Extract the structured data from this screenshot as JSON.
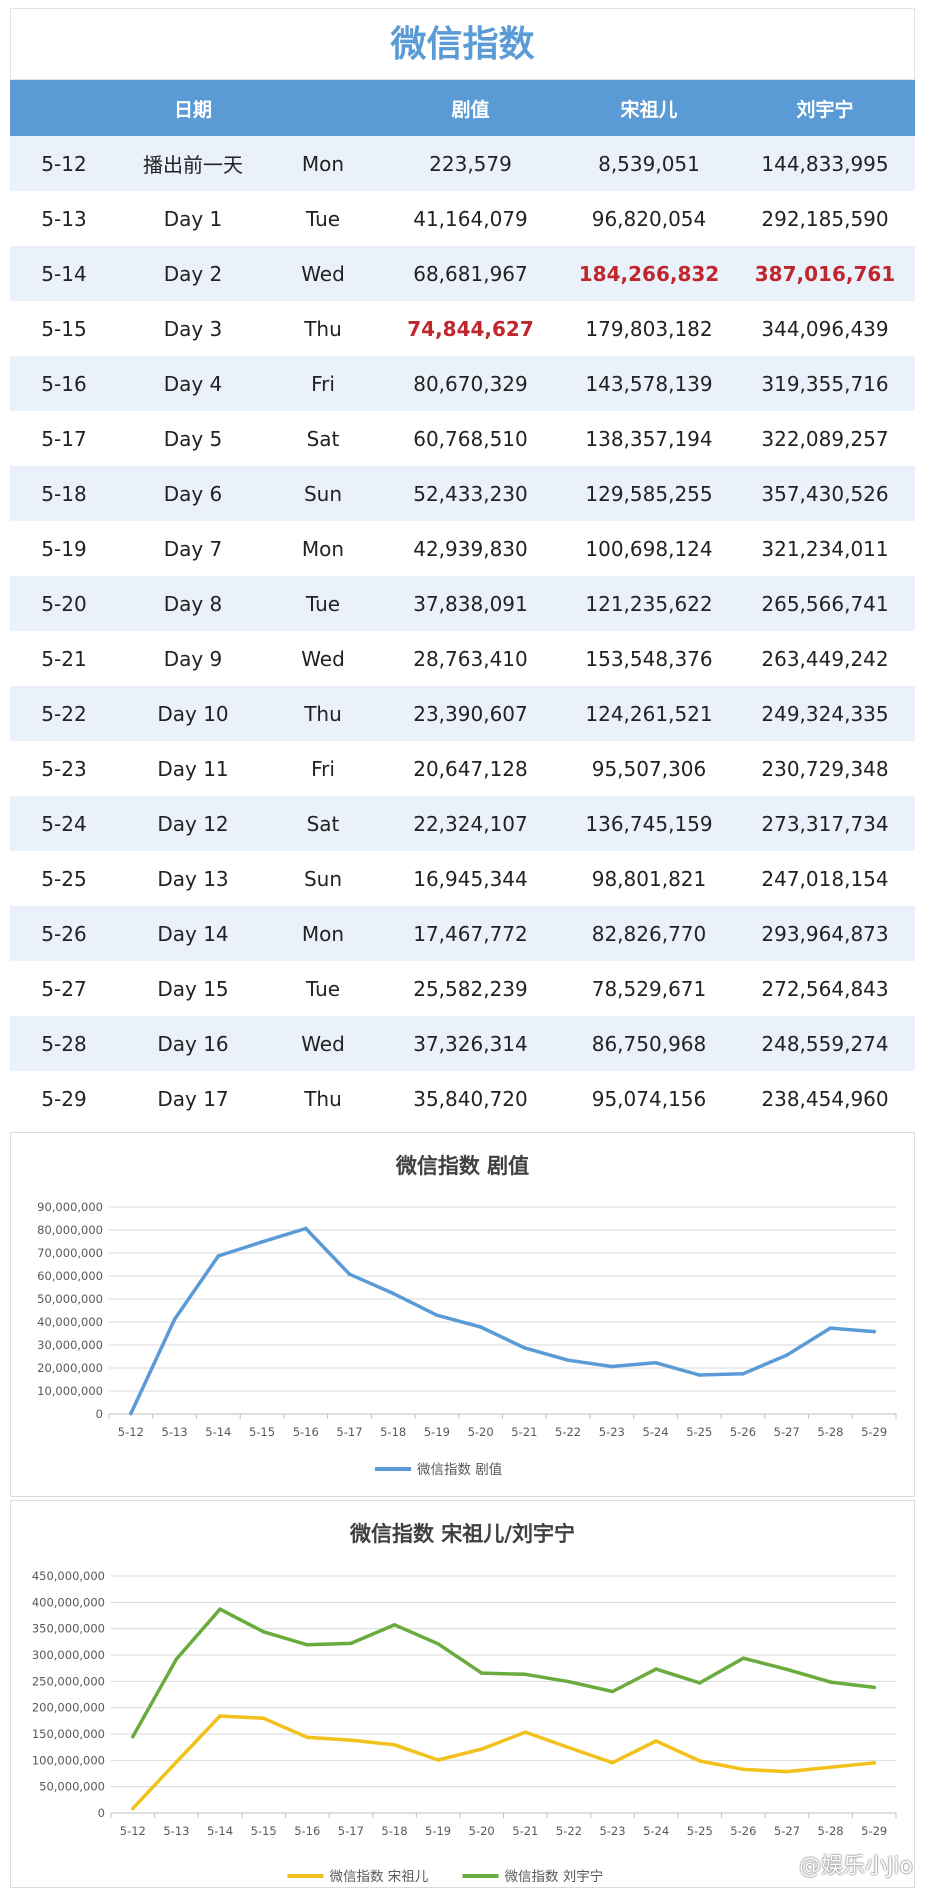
{
  "title": "微信指数",
  "table": {
    "headers": [
      "",
      "日期",
      "",
      "剧值",
      "宋祖儿",
      "刘宇宁"
    ],
    "rows": [
      [
        "5-12",
        "播出前一天",
        "Mon",
        "223,579",
        "8,539,051",
        "144,833,995"
      ],
      [
        "5-13",
        "Day 1",
        "Tue",
        "41,164,079",
        "96,820,054",
        "292,185,590"
      ],
      [
        "5-14",
        "Day 2",
        "Wed",
        "68,681,967",
        "184,266,832",
        "387,016,761"
      ],
      [
        "5-15",
        "Day 3",
        "Thu",
        "74,844,627",
        "179,803,182",
        "344,096,439"
      ],
      [
        "5-16",
        "Day 4",
        "Fri",
        "80,670,329",
        "143,578,139",
        "319,355,716"
      ],
      [
        "5-17",
        "Day 5",
        "Sat",
        "60,768,510",
        "138,357,194",
        "322,089,257"
      ],
      [
        "5-18",
        "Day 6",
        "Sun",
        "52,433,230",
        "129,585,255",
        "357,430,526"
      ],
      [
        "5-19",
        "Day 7",
        "Mon",
        "42,939,830",
        "100,698,124",
        "321,234,011"
      ],
      [
        "5-20",
        "Day 8",
        "Tue",
        "37,838,091",
        "121,235,622",
        "265,566,741"
      ],
      [
        "5-21",
        "Day 9",
        "Wed",
        "28,763,410",
        "153,548,376",
        "263,449,242"
      ],
      [
        "5-22",
        "Day 10",
        "Thu",
        "23,390,607",
        "124,261,521",
        "249,324,335"
      ],
      [
        "5-23",
        "Day 11",
        "Fri",
        "20,647,128",
        "95,507,306",
        "230,729,348"
      ],
      [
        "5-24",
        "Day 12",
        "Sat",
        "22,324,107",
        "136,745,159",
        "273,317,734"
      ],
      [
        "5-25",
        "Day 13",
        "Sun",
        "16,945,344",
        "98,801,821",
        "247,018,154"
      ],
      [
        "5-26",
        "Day 14",
        "Mon",
        "17,467,772",
        "82,826,770",
        "293,964,873"
      ],
      [
        "5-27",
        "Day 15",
        "Tue",
        "25,582,239",
        "78,529,671",
        "272,564,843"
      ],
      [
        "5-28",
        "Day 16",
        "Wed",
        "37,326,314",
        "86,750,968",
        "248,559,274"
      ],
      [
        "5-29",
        "Day 17",
        "Thu",
        "35,840,720",
        "95,074,156",
        "238,454,960"
      ]
    ],
    "highlighted_cells": [
      [
        2,
        4
      ],
      [
        2,
        5
      ],
      [
        3,
        3
      ]
    ]
  },
  "colors": {
    "header_bg": "#5b9bd5",
    "title": "#5b9bd5",
    "highlight": "#c0262d",
    "series_blue": "#5b9bd5",
    "series_yellow": "#f2c11c",
    "series_green": "#6aab3e"
  },
  "chart_data": [
    {
      "type": "line",
      "title": "微信指数 剧值",
      "categories": [
        "5-12",
        "5-13",
        "5-14",
        "5-15",
        "5-16",
        "5-17",
        "5-18",
        "5-19",
        "5-20",
        "5-21",
        "5-22",
        "5-23",
        "5-24",
        "5-25",
        "5-26",
        "5-27",
        "5-28",
        "5-29"
      ],
      "series": [
        {
          "name": "微信指数 剧值",
          "color": "#5b9bd5",
          "values": [
            223579,
            41164079,
            68681967,
            74844627,
            80670329,
            60768510,
            52433230,
            42939830,
            37838091,
            28763410,
            23390607,
            20647128,
            22324107,
            16945344,
            17467772,
            25582239,
            37326314,
            35840720
          ]
        }
      ],
      "ylim": [
        0,
        90000000
      ],
      "yticks": [
        "0",
        "10,000,000",
        "20,000,000",
        "30,000,000",
        "40,000,000",
        "50,000,000",
        "60,000,000",
        "70,000,000",
        "80,000,000",
        "90,000,000"
      ],
      "ytick_values": [
        0,
        10000000,
        20000000,
        30000000,
        40000000,
        50000000,
        60000000,
        70000000,
        80000000,
        90000000
      ],
      "grid": true,
      "legend_position": "bottom"
    },
    {
      "type": "line",
      "title": "微信指数 宋祖儿/刘宇宁",
      "categories": [
        "5-12",
        "5-13",
        "5-14",
        "5-15",
        "5-16",
        "5-17",
        "5-18",
        "5-19",
        "5-20",
        "5-21",
        "5-22",
        "5-23",
        "5-24",
        "5-25",
        "5-26",
        "5-27",
        "5-28",
        "5-29"
      ],
      "series": [
        {
          "name": "微信指数 宋祖儿",
          "color": "#f2c11c",
          "values": [
            8539051,
            96820054,
            184266832,
            179803182,
            143578139,
            138357194,
            129585255,
            100698124,
            121235622,
            153548376,
            124261521,
            95507306,
            136745159,
            98801821,
            82826770,
            78529671,
            86750968,
            95074156
          ]
        },
        {
          "name": "微信指数 刘宇宁",
          "color": "#6aab3e",
          "values": [
            144833995,
            292185590,
            387016761,
            344096439,
            319355716,
            322089257,
            357430526,
            321234011,
            265566741,
            263449242,
            249324335,
            230729348,
            273317734,
            247018154,
            293964873,
            272564843,
            248559274,
            238454960
          ]
        }
      ],
      "ylim": [
        0,
        450000000
      ],
      "yticks": [
        "0",
        "50,000,000",
        "100,000,000",
        "150,000,000",
        "200,000,000",
        "250,000,000",
        "300,000,000",
        "350,000,000",
        "400,000,000",
        "450,000,000"
      ],
      "ytick_values": [
        0,
        50000000,
        100000000,
        150000000,
        200000000,
        250000000,
        300000000,
        350000000,
        400000000,
        450000000
      ],
      "grid": true,
      "legend_position": "bottom"
    }
  ],
  "watermark": "@娱乐小Jio"
}
